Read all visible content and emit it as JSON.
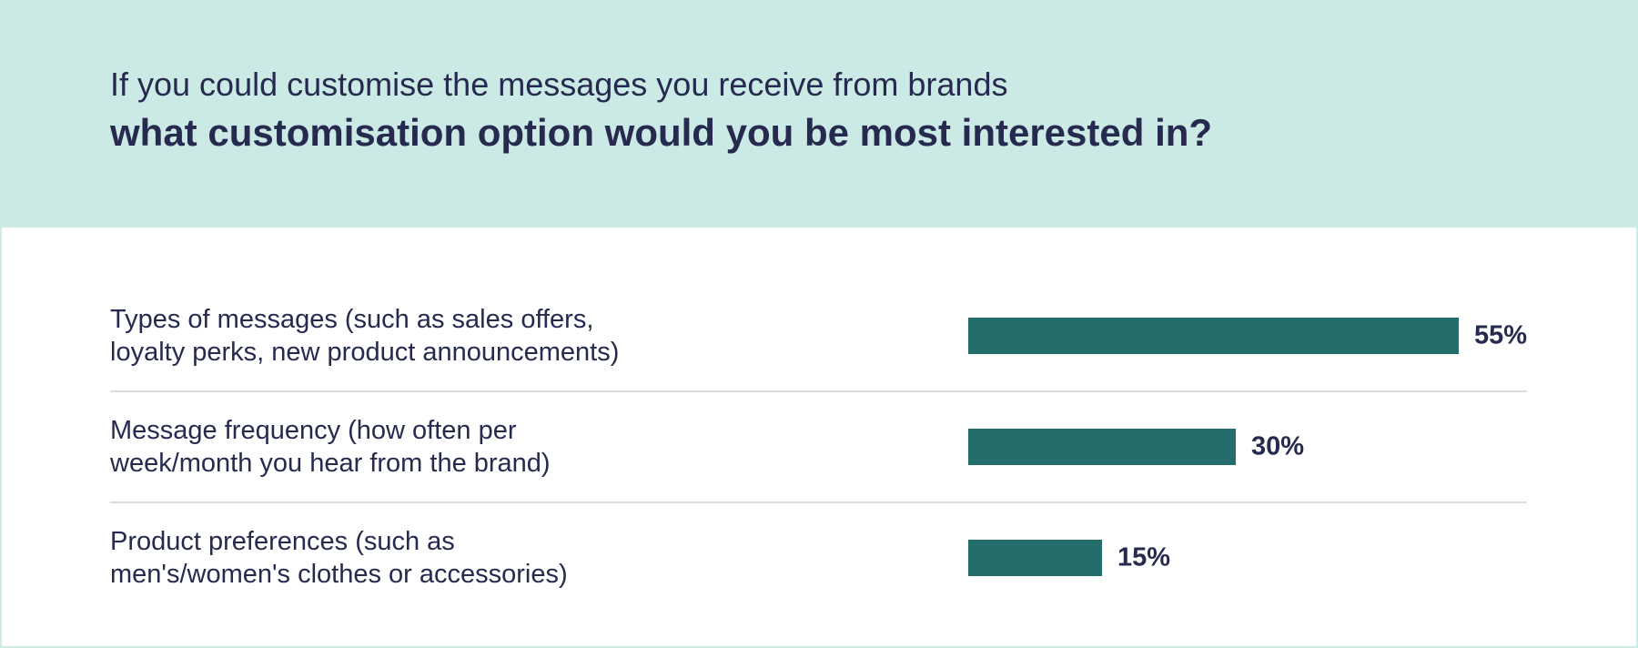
{
  "chart_data": {
    "type": "bar",
    "title": "If you could customise the messages you receive from brands",
    "subtitle": "what customisation option would you be most interested in?",
    "categories": [
      "Types of messages (such as sales offers,\nloyalty perks, new product announcements)",
      "Message frequency (how often per\nweek/month you hear from the brand)",
      "Product preferences (such as\nmen's/women's clothes or accessories)"
    ],
    "values": [
      55,
      30,
      15
    ],
    "value_labels": [
      "55%",
      "30%",
      "15%"
    ],
    "color": "#236e6b"
  }
}
